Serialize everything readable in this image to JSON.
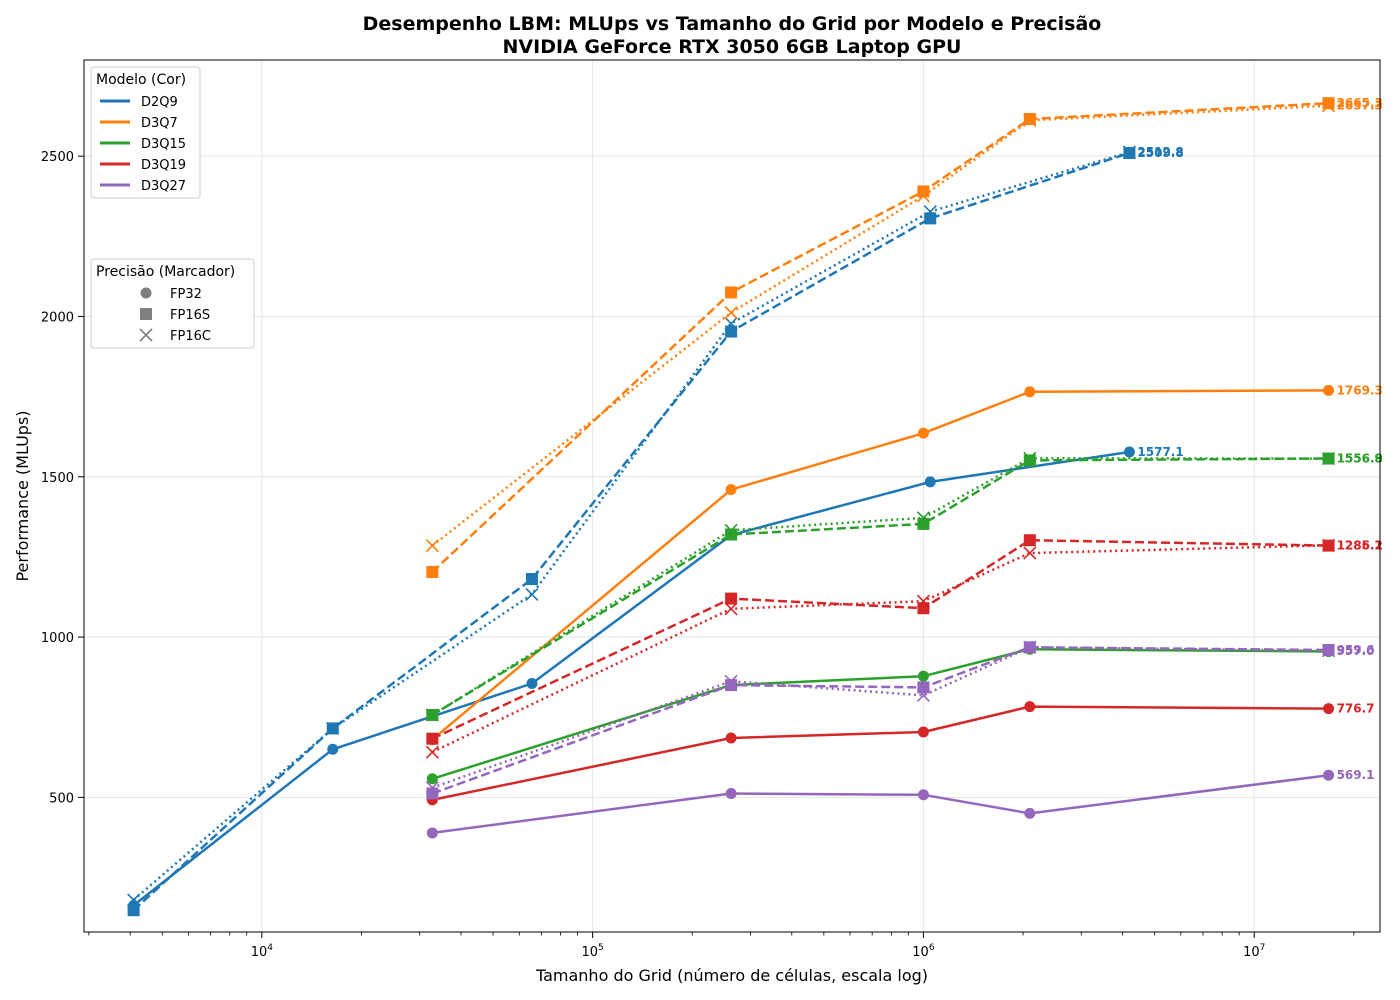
{
  "chart_data": {
    "type": "line",
    "title": "Desempenho LBM: MLUps vs Tamanho do Grid por Modelo e Precisão",
    "subtitle": "NVIDIA GeForce RTX 3050 6GB Laptop GPU",
    "xlabel": "Tamanho do Grid (número de células, escala log)",
    "ylabel": "Performance (MLUps)",
    "xscale": "log",
    "xlim": [
      2900,
      24000000
    ],
    "ylim": [
      80,
      2800
    ],
    "x_ticks": [
      10000,
      100000,
      1000000,
      10000000
    ],
    "x_tick_labels": [
      {
        "base": "10",
        "exp": "4"
      },
      {
        "base": "10",
        "exp": "5"
      },
      {
        "base": "10",
        "exp": "6"
      },
      {
        "base": "10",
        "exp": "7"
      }
    ],
    "y_ticks": [
      500,
      1000,
      1500,
      2000,
      2500
    ],
    "grid": true,
    "legend_models": {
      "title": "Modelo (Cor)",
      "placement": "upper-left",
      "entries": [
        {
          "name": "D2Q9",
          "color": "#1f77b4"
        },
        {
          "name": "D3Q7",
          "color": "#ff7f0e"
        },
        {
          "name": "D3Q15",
          "color": "#2ca02c"
        },
        {
          "name": "D3Q19",
          "color": "#d62728"
        },
        {
          "name": "D3Q27",
          "color": "#9467bd"
        }
      ]
    },
    "legend_precision": {
      "title": "Precisão (Marcador)",
      "placement": "upper-left",
      "entries": [
        {
          "name": "FP32",
          "marker": "circle",
          "linestyle": "solid"
        },
        {
          "name": "FP16S",
          "marker": "square",
          "linestyle": "dashed"
        },
        {
          "name": "FP16C",
          "marker": "x",
          "linestyle": "dotted"
        }
      ]
    },
    "series": [
      {
        "model": "D2Q9",
        "precision": "FP32",
        "color": "#1f77b4",
        "x": [
          4096,
          16384,
          65536,
          262144,
          1048576,
          4194304
        ],
        "y": [
          163,
          650,
          855,
          1318,
          1484,
          1577.1
        ],
        "end_label": "1577.1"
      },
      {
        "model": "D2Q9",
        "precision": "FP16S",
        "color": "#1f77b4",
        "x": [
          4096,
          16384,
          65536,
          262144,
          1048576,
          4194304
        ],
        "y": [
          148,
          715,
          1181,
          1953,
          2306,
          2509.8
        ],
        "end_label": "2509.8"
      },
      {
        "model": "D2Q9",
        "precision": "FP16C",
        "color": "#1f77b4",
        "x": [
          4096,
          16384,
          65536,
          262144,
          1048576,
          4194304
        ],
        "y": [
          180,
          715,
          1133,
          1978,
          2327,
          2512.8
        ],
        "end_label": "2512.8"
      },
      {
        "model": "D3Q7",
        "precision": "FP32",
        "color": "#ff7f0e",
        "x": [
          32768,
          262144,
          1000000,
          2097152,
          16777216
        ],
        "y": [
          680,
          1460,
          1636,
          1765,
          1769.3
        ],
        "end_label": "1769.3"
      },
      {
        "model": "D3Q7",
        "precision": "FP16S",
        "color": "#ff7f0e",
        "x": [
          32768,
          262144,
          1000000,
          2097152,
          16777216
        ],
        "y": [
          1203,
          2075,
          2390,
          2616,
          2665.3
        ],
        "end_label": "2665.3"
      },
      {
        "model": "D3Q7",
        "precision": "FP16C",
        "color": "#ff7f0e",
        "x": [
          32768,
          262144,
          1000000,
          2097152,
          16777216
        ],
        "y": [
          1285,
          2012,
          2376,
          2612,
          2657.3
        ],
        "end_label": "2657.3"
      },
      {
        "model": "D3Q15",
        "precision": "FP32",
        "color": "#2ca02c",
        "x": [
          32768,
          262144,
          1000000,
          2097152,
          16777216
        ],
        "y": [
          558,
          850,
          878,
          962,
          955.0
        ],
        "end_label": ""
      },
      {
        "model": "D3Q15",
        "precision": "FP16S",
        "color": "#2ca02c",
        "x": [
          32768,
          262144,
          1000000,
          2097152,
          16777216
        ],
        "y": [
          757,
          1320,
          1353,
          1551,
          1556.9
        ],
        "end_label": "1556.9"
      },
      {
        "model": "D3Q15",
        "precision": "FP16C",
        "color": "#2ca02c",
        "x": [
          32768,
          262144,
          1000000,
          2097152,
          16777216
        ],
        "y": [
          757,
          1333,
          1372,
          1558,
          1556.8
        ],
        "end_label": "1556.8"
      },
      {
        "model": "D3Q19",
        "precision": "FP32",
        "color": "#d62728",
        "x": [
          32768,
          262144,
          1000000,
          2097152,
          16777216
        ],
        "y": [
          492,
          685,
          704,
          783,
          776.7
        ],
        "end_label": "776.7"
      },
      {
        "model": "D3Q19",
        "precision": "FP16S",
        "color": "#d62728",
        "x": [
          32768,
          262144,
          1000000,
          2097152,
          16777216
        ],
        "y": [
          683,
          1120,
          1090,
          1302,
          1285.2
        ],
        "end_label": "1285.2"
      },
      {
        "model": "D3Q19",
        "precision": "FP16C",
        "color": "#d62728",
        "x": [
          32768,
          262144,
          1000000,
          2097152,
          16777216
        ],
        "y": [
          641,
          1088,
          1112,
          1262,
          1286.1
        ],
        "end_label": "1286.1"
      },
      {
        "model": "D3Q27",
        "precision": "FP32",
        "color": "#9467bd",
        "x": [
          32768,
          262144,
          1000000,
          2097152,
          16777216
        ],
        "y": [
          389,
          512,
          508,
          450,
          569.1
        ],
        "end_label": "569.1"
      },
      {
        "model": "D3Q27",
        "precision": "FP16S",
        "color": "#9467bd",
        "x": [
          32768,
          262144,
          1000000,
          2097152,
          16777216
        ],
        "y": [
          512,
          850,
          843,
          968,
          959.6
        ],
        "end_label": "959.6"
      },
      {
        "model": "D3Q27",
        "precision": "FP16C",
        "color": "#9467bd",
        "x": [
          32768,
          262144,
          1000000,
          2097152,
          16777216
        ],
        "y": [
          530,
          862,
          818,
          968,
          957.0
        ],
        "end_label": "957.0"
      }
    ]
  }
}
